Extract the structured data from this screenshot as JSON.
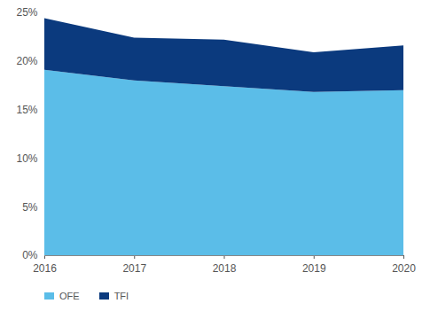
{
  "chart_data": {
    "type": "area",
    "stacked": true,
    "x": [
      2016,
      2017,
      2018,
      2019,
      2020
    ],
    "series": [
      {
        "name": "OFE",
        "color": "#5bbde8",
        "values": [
          19.1,
          18.0,
          17.4,
          16.8,
          17.0
        ]
      },
      {
        "name": "TFI",
        "color": "#0b3a7e",
        "values": [
          5.3,
          4.4,
          4.8,
          4.1,
          4.6
        ]
      }
    ],
    "xlim": [
      2016,
      2020
    ],
    "xticks": [
      2016,
      2017,
      2018,
      2019,
      2020
    ],
    "ylim": [
      0,
      25
    ],
    "yticks": [
      {
        "value": 0,
        "label": "0%"
      },
      {
        "value": 5,
        "label": "5%"
      },
      {
        "value": 10,
        "label": "10%"
      },
      {
        "value": 15,
        "label": "15%"
      },
      {
        "value": 20,
        "label": "20%"
      },
      {
        "value": 25,
        "label": "25%"
      }
    ],
    "grid": false,
    "legend": "bottom"
  }
}
